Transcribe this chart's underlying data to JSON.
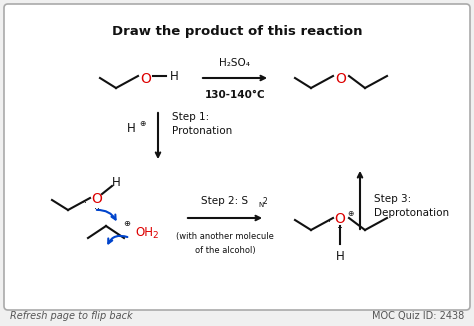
{
  "bg_color": "#f0f0f0",
  "box_color": "#ffffff",
  "border_color": "#aaaaaa",
  "title": "Draw the product of this reaction",
  "title_fontsize": 9.5,
  "footer_left": "Refresh page to flip back",
  "footer_right": "MOC Quiz ID: 2438",
  "footer_fontsize": 7.0,
  "red": "#dd0000",
  "blue": "#0044cc",
  "black": "#111111",
  "fs": 8.0
}
